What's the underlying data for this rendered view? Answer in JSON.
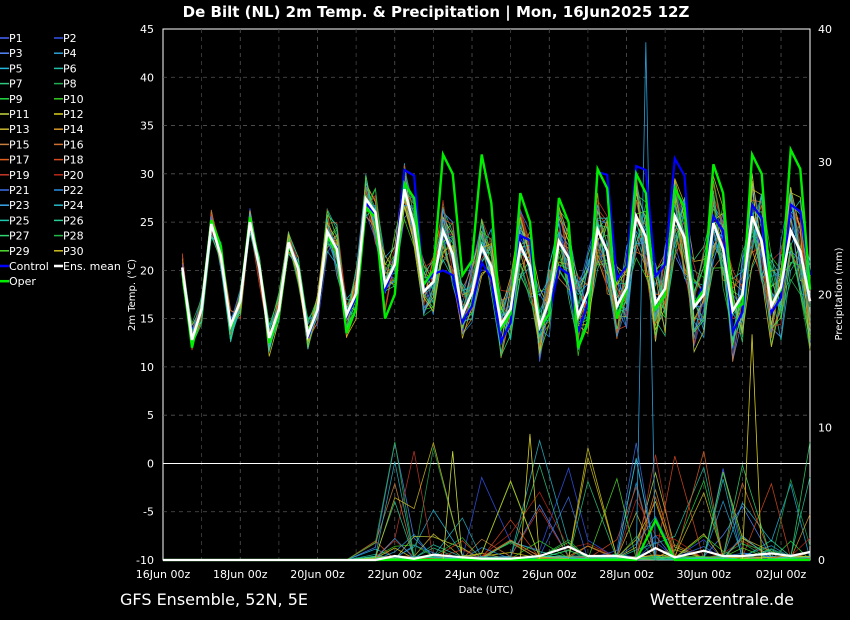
{
  "chart_data": {
    "type": "line",
    "title": "De Bilt  (NL)  2m Temp. & Precipitation | Mon, 16Jun2025 12Z",
    "xlabel": "Date (UTC)",
    "ylabel_left": "2m Temp. (°C)",
    "ylabel_right": "Precipitation (mm)",
    "x_ticks": [
      "16Jun 00z",
      "18Jun 00z",
      "20Jun 00z",
      "22Jun 00z",
      "24Jun 00z",
      "26Jun 00z",
      "28Jun 00z",
      "30Jun 00z",
      "02Jul 00z"
    ],
    "y_ticks_left": [
      "45",
      "40",
      "35",
      "30",
      "25",
      "20",
      "15",
      "10",
      "5",
      "0",
      "-5",
      "-10"
    ],
    "y_ticks_right": [
      "40",
      "30",
      "20",
      "10",
      "0"
    ],
    "temp_ylim": [
      -10,
      45
    ],
    "precip_ylim": [
      0,
      40
    ],
    "x_range_hours": [
      0,
      402
    ],
    "grid": true,
    "legend_placement": "left",
    "temp_anchors": {
      "hours": [
        12,
        18,
        24,
        30,
        36,
        42,
        48,
        54,
        60,
        66,
        72,
        78,
        84,
        90,
        96,
        102,
        108,
        114,
        120,
        126,
        132,
        138,
        144,
        150,
        156,
        162,
        168,
        174,
        180,
        186,
        192,
        198,
        204,
        210,
        216,
        222,
        228,
        234,
        240,
        246,
        252,
        258,
        264,
        270,
        276,
        282,
        288,
        294,
        300,
        306,
        312,
        318,
        324,
        330,
        336,
        342,
        348,
        354,
        360,
        366,
        372,
        378,
        384,
        390,
        396,
        402
      ],
      "mean": [
        20.3,
        12.8,
        16.0,
        24.8,
        21.5,
        14.3,
        16.8,
        25.0,
        20.2,
        13.0,
        15.9,
        22.9,
        20.2,
        13.3,
        15.9,
        24.0,
        22.2,
        15.4,
        17.6,
        27.4,
        26.0,
        18.5,
        20.6,
        28.4,
        24.6,
        17.8,
        18.8,
        24.1,
        21.7,
        15.4,
        17.7,
        22.4,
        20.4,
        14.4,
        16.0,
        22.6,
        20.4,
        14.2,
        16.9,
        23.0,
        21.3,
        15.3,
        17.8,
        24.2,
        22.0,
        16.3,
        18.2,
        25.6,
        23.5,
        16.6,
        18.1,
        25.6,
        23.4,
        16.2,
        17.5,
        24.9,
        22.2,
        15.8,
        17.5,
        25.6,
        23.0,
        16.3,
        18.3,
        24.1,
        22.0,
        16.8
      ],
      "oper": [
        19.8,
        12.0,
        16.3,
        25.2,
        22.5,
        14.0,
        17.0,
        25.5,
        20.5,
        12.5,
        15.5,
        22.5,
        20.5,
        13.5,
        16.0,
        23.5,
        22.0,
        13.5,
        16.0,
        26.5,
        25.5,
        15.0,
        17.5,
        29.0,
        27.5,
        18.5,
        20.0,
        32.0,
        30.0,
        19.5,
        21.0,
        32.0,
        27.0,
        14.0,
        15.5,
        28.0,
        25.0,
        14.0,
        15.5,
        27.5,
        25.0,
        12.0,
        14.5,
        30.5,
        28.5,
        15.0,
        18.0,
        30.0,
        28.0,
        16.0,
        17.5,
        28.5,
        26.5,
        16.5,
        18.0,
        31.0,
        28.0,
        16.0,
        16.5,
        32.0,
        30.0,
        16.5,
        18.0,
        32.5,
        30.5,
        18.0
      ],
      "control": [
        20.3,
        12.5,
        16.0,
        24.9,
        21.8,
        14.2,
        16.8,
        25.1,
        20.3,
        12.8,
        15.6,
        22.6,
        20.6,
        13.0,
        15.8,
        23.7,
        22.4,
        15.2,
        17.2,
        27.0,
        25.8,
        18.0,
        20.5,
        30.4,
        29.8,
        18.5,
        19.6,
        20.0,
        19.5,
        14.6,
        16.3,
        20.8,
        19.2,
        12.6,
        14.6,
        23.6,
        23.1,
        13.9,
        15.6,
        20.3,
        19.6,
        13.6,
        16.6,
        30.2,
        29.9,
        19.1,
        20.4,
        30.8,
        30.4,
        19.4,
        20.6,
        31.6,
        29.8,
        16.3,
        18.6,
        25.6,
        24.1,
        13.6,
        15.7,
        26.8,
        25.4,
        15.6,
        17.2,
        26.8,
        26.1,
        19.5
      ]
    },
    "precip_anchors": {
      "hours": [
        0,
        12,
        30,
        60,
        90,
        114,
        132,
        144,
        156,
        168,
        186,
        198,
        216,
        234,
        252,
        264,
        282,
        294,
        306,
        318,
        336,
        348,
        360,
        378,
        390,
        402
      ],
      "mean": [
        0,
        0,
        0,
        0,
        0,
        0,
        0,
        0.3,
        0.1,
        0.4,
        0.2,
        0.1,
        0.1,
        0.3,
        1.0,
        0.3,
        0.3,
        0.1,
        0.9,
        0.2,
        0.7,
        0.3,
        0.3,
        0.5,
        0.3,
        0.6
      ],
      "oper": [
        0,
        0,
        0,
        0,
        0,
        0,
        0,
        0,
        0,
        0,
        0,
        0,
        0,
        0,
        0,
        0,
        0,
        0,
        3.0,
        0,
        0,
        0,
        0,
        0,
        0,
        0
      ]
    },
    "series": [
      {
        "name": "P1",
        "color": "#4466ff"
      },
      {
        "name": "P2",
        "color": "#3355ee"
      },
      {
        "name": "P3",
        "color": "#5588ff"
      },
      {
        "name": "P4",
        "color": "#2aa0d8"
      },
      {
        "name": "P5",
        "color": "#22b8e0"
      },
      {
        "name": "P6",
        "color": "#20c0a8"
      },
      {
        "name": "P7",
        "color": "#30c880"
      },
      {
        "name": "P8",
        "color": "#22aa55"
      },
      {
        "name": "P9",
        "color": "#22dd44"
      },
      {
        "name": "P10",
        "color": "#33cc22"
      },
      {
        "name": "P11",
        "color": "#c8d840"
      },
      {
        "name": "P12",
        "color": "#d8d020"
      },
      {
        "name": "P13",
        "color": "#c8b830"
      },
      {
        "name": "P14",
        "color": "#d89828"
      },
      {
        "name": "P15",
        "color": "#c88040"
      },
      {
        "name": "P16",
        "color": "#d07030"
      },
      {
        "name": "P17",
        "color": "#e06020"
      },
      {
        "name": "P18",
        "color": "#d84a20"
      },
      {
        "name": "P19",
        "color": "#c83828"
      },
      {
        "name": "P20",
        "color": "#b82818"
      },
      {
        "name": "P21",
        "color": "#3a70e8"
      },
      {
        "name": "P22",
        "color": "#2a8ee0"
      },
      {
        "name": "P23",
        "color": "#3aa8e8"
      },
      {
        "name": "P24",
        "color": "#28b8c8"
      },
      {
        "name": "P25",
        "color": "#20c8b0"
      },
      {
        "name": "P26",
        "color": "#28d098"
      },
      {
        "name": "P27",
        "color": "#30d870"
      },
      {
        "name": "P28",
        "color": "#22b848"
      },
      {
        "name": "P29",
        "color": "#50e030"
      },
      {
        "name": "P30",
        "color": "#d0c020"
      },
      {
        "name": "Control",
        "color": "#0000ff"
      },
      {
        "name": "Ens. mean",
        "color": "#ffffff"
      },
      {
        "name": "Oper",
        "color": "#00ee00"
      }
    ]
  },
  "footer": {
    "left": "GFS Ensemble, 52N, 5E",
    "right": "Wetterzentrale.de"
  }
}
